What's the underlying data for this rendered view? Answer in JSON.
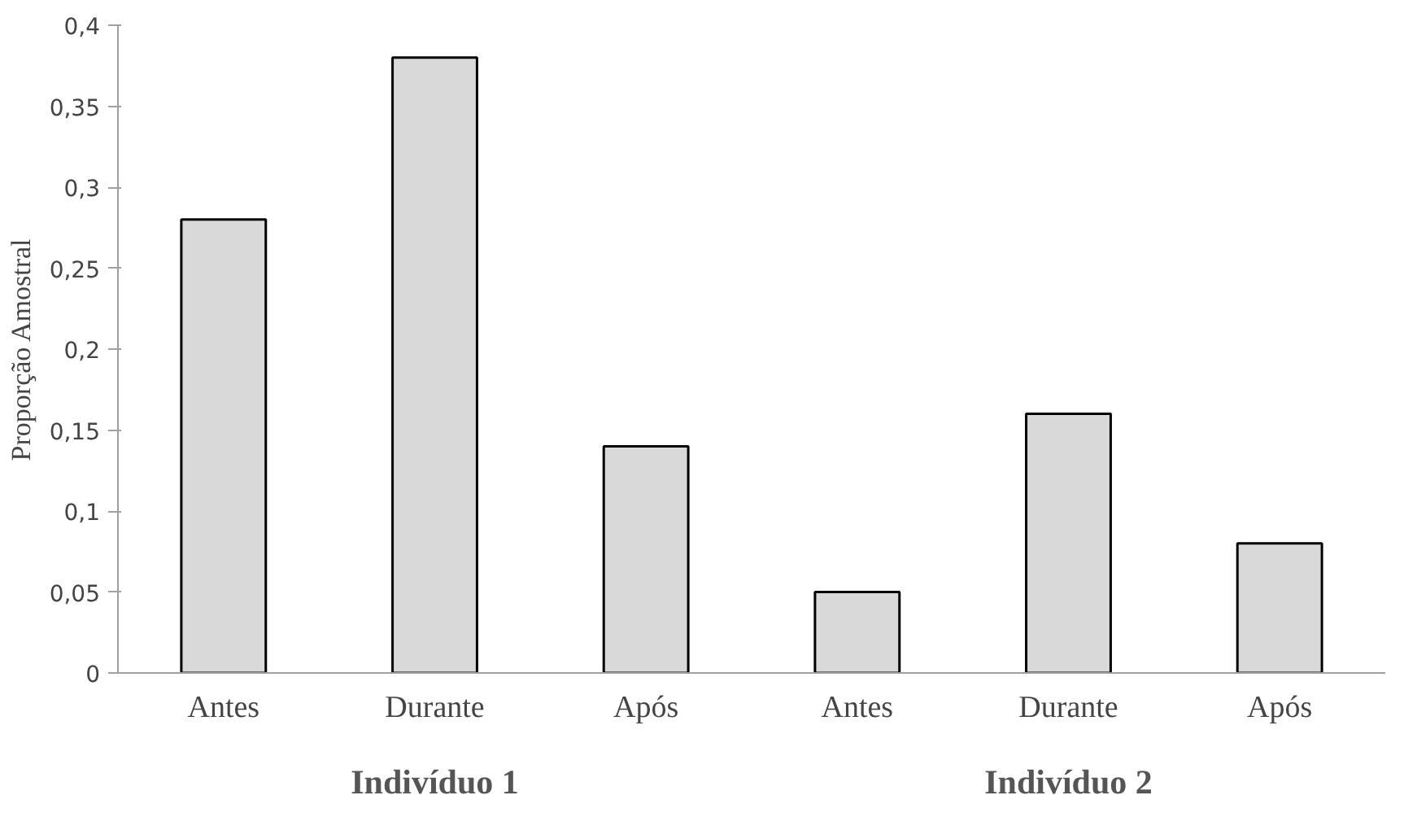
{
  "chart_data": {
    "type": "bar",
    "ylabel": "Proporção Amostral",
    "categories": [
      "Antes",
      "Durante",
      "Após",
      "Antes",
      "Durante",
      "Após"
    ],
    "values": [
      0.28,
      0.38,
      0.14,
      0.05,
      0.16,
      0.08
    ],
    "color": "#d9d9d9",
    "ylim": [
      0,
      0.4
    ],
    "yticks": [
      0,
      {
        "value": 0.05,
        "label": "0,05"
      },
      {
        "value": 0.1,
        "label": "0,1"
      },
      {
        "value": 0.15,
        "label": "0,15"
      },
      {
        "value": 0.2,
        "label": "0,2"
      },
      {
        "value": 0.25,
        "label": "0,25"
      },
      {
        "value": 0.3,
        "label": "0,3"
      },
      {
        "value": 0.35,
        "label": "0,35"
      },
      {
        "value": 0.4,
        "label": "0,4"
      }
    ],
    "grid": false,
    "annotations": [
      "Indivíduo 1",
      "Indivíduo 2"
    ]
  }
}
